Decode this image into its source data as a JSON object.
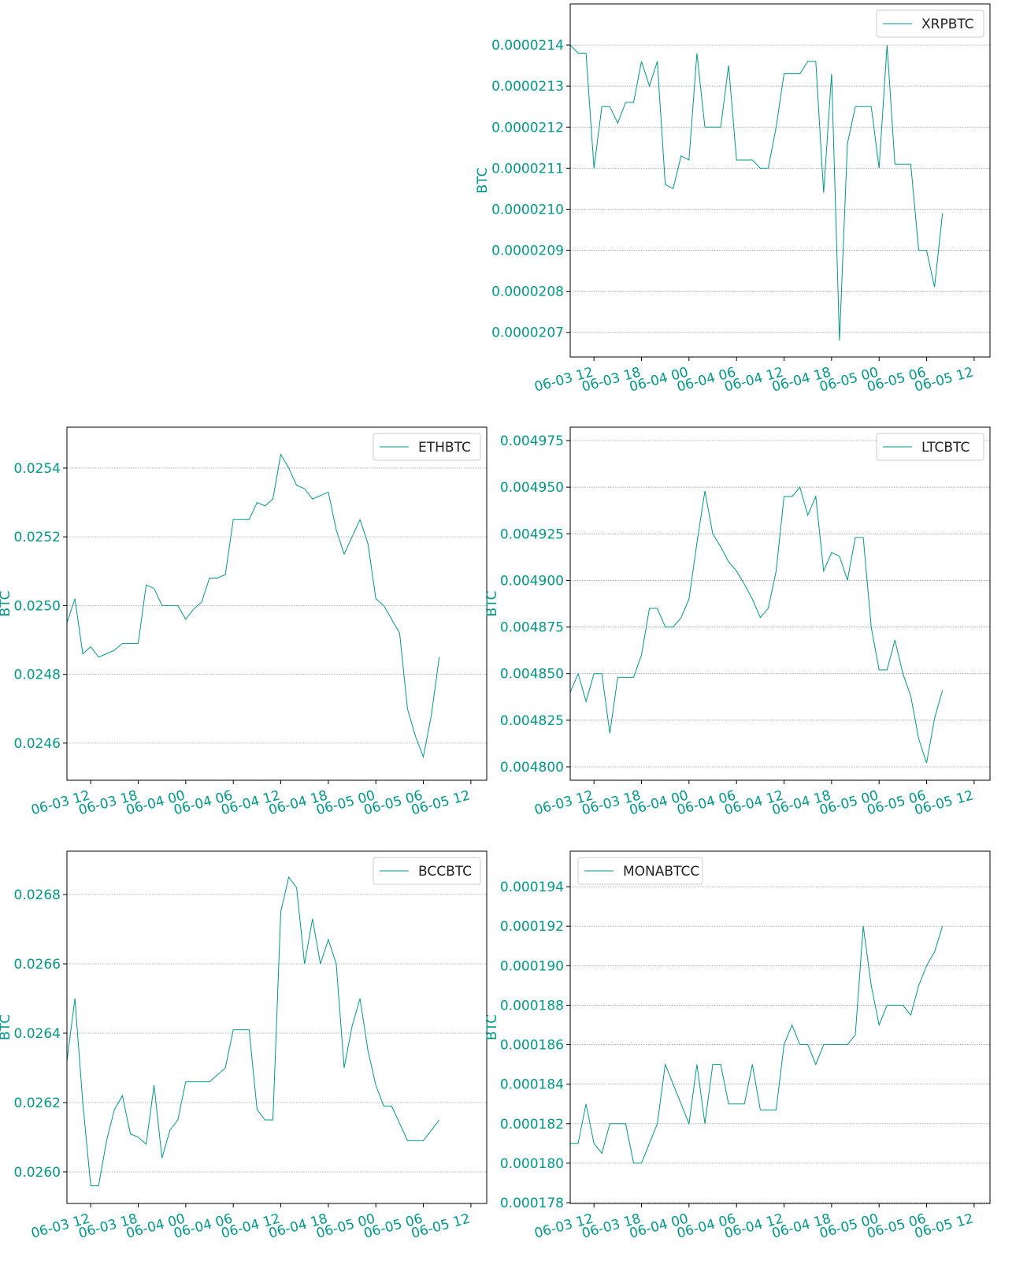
{
  "chart_data": [
    {
      "type": "line",
      "ylabel": "BTC",
      "grid": true,
      "legend": "upper right",
      "x": [
        "06-03 09",
        "06-03 10",
        "06-03 11",
        "06-03 12",
        "06-03 13",
        "06-03 14",
        "06-03 15",
        "06-03 16",
        "06-03 17",
        "06-03 18",
        "06-03 19",
        "06-03 20",
        "06-03 21",
        "06-03 22",
        "06-03 23",
        "06-04 00",
        "06-04 01",
        "06-04 02",
        "06-04 03",
        "06-04 04",
        "06-04 05",
        "06-04 06",
        "06-04 07",
        "06-04 08",
        "06-04 09",
        "06-04 10",
        "06-04 11",
        "06-04 12",
        "06-04 13",
        "06-04 14",
        "06-04 15",
        "06-04 16",
        "06-04 17",
        "06-04 18",
        "06-04 19",
        "06-04 20",
        "06-04 21",
        "06-04 22",
        "06-04 23",
        "06-05 00",
        "06-05 01",
        "06-05 02",
        "06-05 03",
        "06-05 04",
        "06-05 05",
        "06-05 06",
        "06-05 07",
        "06-05 08"
      ],
      "xlim": [
        "06-03 09",
        "06-05 14"
      ],
      "xticks": [
        "06-03 12",
        "06-03 18",
        "06-04 00",
        "06-04 06",
        "06-04 12",
        "06-04 18",
        "06-05 00",
        "06-05 06",
        "06-05 12"
      ],
      "ylim": [
        2.064e-05,
        2.15e-05
      ],
      "yticks": [
        {
          "value": 2.07e-05,
          "label": "0.0000207"
        },
        {
          "value": 2.08e-05,
          "label": "0.0000208"
        },
        {
          "value": 2.09e-05,
          "label": "0.0000209"
        },
        {
          "value": 2.1e-05,
          "label": "0.0000210"
        },
        {
          "value": 2.11e-05,
          "label": "0.0000211"
        },
        {
          "value": 2.12e-05,
          "label": "0.0000212"
        },
        {
          "value": 2.13e-05,
          "label": "0.0000213"
        },
        {
          "value": 2.14e-05,
          "label": "0.0000214"
        }
      ],
      "series": [
        {
          "name": "XRPBTC",
          "color": "#00998a",
          "values": [
            2.14e-05,
            2.138e-05,
            2.138e-05,
            2.11e-05,
            2.125e-05,
            2.125e-05,
            2.121e-05,
            2.126e-05,
            2.126e-05,
            2.136e-05,
            2.13e-05,
            2.136e-05,
            2.106e-05,
            2.105e-05,
            2.113e-05,
            2.112e-05,
            2.138e-05,
            2.12e-05,
            2.12e-05,
            2.12e-05,
            2.135e-05,
            2.112e-05,
            2.112e-05,
            2.112e-05,
            2.11e-05,
            2.11e-05,
            2.12e-05,
            2.133e-05,
            2.133e-05,
            2.133e-05,
            2.136e-05,
            2.136e-05,
            2.104e-05,
            2.133e-05,
            2.068e-05,
            2.116e-05,
            2.125e-05,
            2.125e-05,
            2.125e-05,
            2.11e-05,
            2.14e-05,
            2.111e-05,
            2.111e-05,
            2.111e-05,
            2.09e-05,
            2.09e-05,
            2.081e-05,
            2.099e-05
          ]
        }
      ]
    },
    {
      "type": "line",
      "ylabel": "BTC",
      "grid": true,
      "legend": "upper right",
      "x": [
        "06-03 09",
        "06-03 10",
        "06-03 11",
        "06-03 12",
        "06-03 13",
        "06-03 14",
        "06-03 15",
        "06-03 16",
        "06-03 17",
        "06-03 18",
        "06-03 19",
        "06-03 20",
        "06-03 21",
        "06-03 22",
        "06-03 23",
        "06-04 00",
        "06-04 01",
        "06-04 02",
        "06-04 03",
        "06-04 04",
        "06-04 05",
        "06-04 06",
        "06-04 07",
        "06-04 08",
        "06-04 09",
        "06-04 10",
        "06-04 11",
        "06-04 12",
        "06-04 13",
        "06-04 14",
        "06-04 15",
        "06-04 16",
        "06-04 17",
        "06-04 18",
        "06-04 19",
        "06-04 20",
        "06-04 21",
        "06-04 22",
        "06-04 23",
        "06-05 00",
        "06-05 01",
        "06-05 02",
        "06-05 03",
        "06-05 04",
        "06-05 05",
        "06-05 06",
        "06-05 07",
        "06-05 08"
      ],
      "xlim": [
        "06-03 09",
        "06-05 14"
      ],
      "xticks": [
        "06-03 12",
        "06-03 18",
        "06-04 00",
        "06-04 06",
        "06-04 12",
        "06-04 18",
        "06-05 00",
        "06-05 06",
        "06-05 12"
      ],
      "ylim": [
        0.024492,
        0.025519
      ],
      "yticks": [
        {
          "value": 0.0246,
          "label": "0.0246"
        },
        {
          "value": 0.0248,
          "label": "0.0248"
        },
        {
          "value": 0.025,
          "label": "0.0250"
        },
        {
          "value": 0.0252,
          "label": "0.0252"
        },
        {
          "value": 0.0254,
          "label": "0.0254"
        }
      ],
      "series": [
        {
          "name": "ETHBTC",
          "color": "#00998a",
          "values": [
            0.02495,
            0.02502,
            0.02486,
            0.02488,
            0.02485,
            0.02486,
            0.02487,
            0.02489,
            0.02489,
            0.02489,
            0.02506,
            0.02505,
            0.025,
            0.025,
            0.025,
            0.02496,
            0.02499,
            0.02501,
            0.02508,
            0.02508,
            0.02509,
            0.02525,
            0.02525,
            0.02525,
            0.0253,
            0.02529,
            0.02531,
            0.02544,
            0.0254,
            0.02535,
            0.02534,
            0.02531,
            0.02532,
            0.02533,
            0.02522,
            0.02515,
            0.0252,
            0.02525,
            0.02518,
            0.02502,
            0.025,
            0.02496,
            0.02492,
            0.0247,
            0.02462,
            0.02456,
            0.02468,
            0.02485
          ]
        }
      ]
    },
    {
      "type": "line",
      "ylabel": "BTC",
      "grid": true,
      "legend": "upper right",
      "x": [
        "06-03 09",
        "06-03 10",
        "06-03 11",
        "06-03 12",
        "06-03 13",
        "06-03 14",
        "06-03 15",
        "06-03 16",
        "06-03 17",
        "06-03 18",
        "06-03 19",
        "06-03 20",
        "06-03 21",
        "06-03 22",
        "06-03 23",
        "06-04 00",
        "06-04 01",
        "06-04 02",
        "06-04 03",
        "06-04 04",
        "06-04 05",
        "06-04 06",
        "06-04 07",
        "06-04 08",
        "06-04 09",
        "06-04 10",
        "06-04 11",
        "06-04 12",
        "06-04 13",
        "06-04 14",
        "06-04 15",
        "06-04 16",
        "06-04 17",
        "06-04 18",
        "06-04 19",
        "06-04 20",
        "06-04 21",
        "06-04 22",
        "06-04 23",
        "06-05 00",
        "06-05 01",
        "06-05 02",
        "06-05 03",
        "06-05 04",
        "06-05 05",
        "06-05 06",
        "06-05 07",
        "06-05 08"
      ],
      "xlim": [
        "06-03 09",
        "06-05 14"
      ],
      "xticks": [
        "06-03 12",
        "06-03 18",
        "06-04 00",
        "06-04 06",
        "06-04 12",
        "06-04 18",
        "06-05 00",
        "06-05 06",
        "06-05 12"
      ],
      "ylim": [
        0.0047928,
        0.0049822
      ],
      "yticks": [
        {
          "value": 0.0048,
          "label": "0.004800"
        },
        {
          "value": 0.004825,
          "label": "0.004825"
        },
        {
          "value": 0.00485,
          "label": "0.004850"
        },
        {
          "value": 0.004875,
          "label": "0.004875"
        },
        {
          "value": 0.0049,
          "label": "0.004900"
        },
        {
          "value": 0.004925,
          "label": "0.004925"
        },
        {
          "value": 0.00495,
          "label": "0.004950"
        },
        {
          "value": 0.004975,
          "label": "0.004975"
        }
      ],
      "series": [
        {
          "name": "LTCBTC",
          "color": "#00998a",
          "values": [
            0.00484,
            0.00485,
            0.004835,
            0.00485,
            0.00485,
            0.004818,
            0.004848,
            0.004848,
            0.004848,
            0.00486,
            0.004885,
            0.004885,
            0.004875,
            0.004875,
            0.00488,
            0.00489,
            0.00492,
            0.004948,
            0.004925,
            0.004918,
            0.00491,
            0.004905,
            0.004898,
            0.00489,
            0.00488,
            0.004885,
            0.004905,
            0.004945,
            0.004945,
            0.00495,
            0.004935,
            0.004945,
            0.004905,
            0.004915,
            0.004913,
            0.0049,
            0.004923,
            0.004923,
            0.004875,
            0.004852,
            0.004852,
            0.004868,
            0.00485,
            0.004838,
            0.004815,
            0.004802,
            0.004826,
            0.004841
          ]
        }
      ]
    },
    {
      "type": "line",
      "ylabel": "BTC",
      "grid": true,
      "legend": "upper right",
      "x": [
        "06-03 09",
        "06-03 10",
        "06-03 11",
        "06-03 12",
        "06-03 13",
        "06-03 14",
        "06-03 15",
        "06-03 16",
        "06-03 17",
        "06-03 18",
        "06-03 19",
        "06-03 20",
        "06-03 21",
        "06-03 22",
        "06-03 23",
        "06-04 00",
        "06-04 01",
        "06-04 02",
        "06-04 03",
        "06-04 04",
        "06-04 05",
        "06-04 06",
        "06-04 07",
        "06-04 08",
        "06-04 09",
        "06-04 10",
        "06-04 11",
        "06-04 12",
        "06-04 13",
        "06-04 14",
        "06-04 15",
        "06-04 16",
        "06-04 17",
        "06-04 18",
        "06-04 19",
        "06-04 20",
        "06-04 21",
        "06-04 22",
        "06-04 23",
        "06-05 00",
        "06-05 01",
        "06-05 02",
        "06-05 03",
        "06-05 04",
        "06-05 05",
        "06-05 06",
        "06-05 07",
        "06-05 08"
      ],
      "xlim": [
        "06-03 09",
        "06-05 14"
      ],
      "xticks": [
        "06-03 12",
        "06-03 18",
        "06-04 00",
        "06-04 06",
        "06-04 12",
        "06-04 18",
        "06-05 00",
        "06-05 06",
        "06-05 12"
      ],
      "ylim": [
        0.025909,
        0.026925
      ],
      "yticks": [
        {
          "value": 0.026,
          "label": "0.0260"
        },
        {
          "value": 0.0262,
          "label": "0.0262"
        },
        {
          "value": 0.0264,
          "label": "0.0264"
        },
        {
          "value": 0.0266,
          "label": "0.0266"
        },
        {
          "value": 0.0268,
          "label": "0.0268"
        }
      ],
      "series": [
        {
          "name": "BCCBTC",
          "color": "#00998a",
          "values": [
            0.02632,
            0.0265,
            0.0262,
            0.02596,
            0.02596,
            0.02609,
            0.02618,
            0.02622,
            0.02611,
            0.0261,
            0.02608,
            0.02625,
            0.02604,
            0.02612,
            0.02615,
            0.02626,
            0.02626,
            0.02626,
            0.02626,
            0.02628,
            0.0263,
            0.02641,
            0.02641,
            0.02641,
            0.02618,
            0.02615,
            0.02615,
            0.02675,
            0.02685,
            0.02682,
            0.0266,
            0.02673,
            0.0266,
            0.02667,
            0.0266,
            0.0263,
            0.02642,
            0.0265,
            0.02635,
            0.02625,
            0.02619,
            0.02619,
            0.02614,
            0.02609,
            0.02609,
            0.02609,
            0.02612,
            0.02615
          ]
        }
      ]
    },
    {
      "type": "line",
      "ylabel": "BTC",
      "grid": true,
      "legend": "upper left",
      "x": [
        "06-03 09",
        "06-03 10",
        "06-03 11",
        "06-03 12",
        "06-03 13",
        "06-03 14",
        "06-03 15",
        "06-03 16",
        "06-03 17",
        "06-03 18",
        "06-03 19",
        "06-03 20",
        "06-03 21",
        "06-03 22",
        "06-03 23",
        "06-04 00",
        "06-04 01",
        "06-04 02",
        "06-04 03",
        "06-04 04",
        "06-04 05",
        "06-04 06",
        "06-04 07",
        "06-04 08",
        "06-04 09",
        "06-04 10",
        "06-04 11",
        "06-04 12",
        "06-04 13",
        "06-04 14",
        "06-04 15",
        "06-04 16",
        "06-04 17",
        "06-04 18",
        "06-04 19",
        "06-04 20",
        "06-04 21",
        "06-04 22",
        "06-04 23",
        "06-05 00",
        "06-05 01",
        "06-05 02",
        "06-05 03",
        "06-05 04",
        "06-05 05",
        "06-05 06",
        "06-05 07",
        "06-05 08"
      ],
      "xlim": [
        "06-03 09",
        "06-05 14"
      ],
      "xticks": [
        "06-03 12",
        "06-03 18",
        "06-04 00",
        "06-04 06",
        "06-04 12",
        "06-04 18",
        "06-05 00",
        "06-05 06",
        "06-05 12"
      ],
      "ylim": [
        0.00017796,
        0.0001958
      ],
      "yticks": [
        {
          "value": 0.000178,
          "label": "0.000178"
        },
        {
          "value": 0.00018,
          "label": "0.000180"
        },
        {
          "value": 0.000182,
          "label": "0.000182"
        },
        {
          "value": 0.000184,
          "label": "0.000184"
        },
        {
          "value": 0.000186,
          "label": "0.000186"
        },
        {
          "value": 0.000188,
          "label": "0.000188"
        },
        {
          "value": 0.00019,
          "label": "0.000190"
        },
        {
          "value": 0.000192,
          "label": "0.000192"
        },
        {
          "value": 0.000194,
          "label": "0.000194"
        }
      ],
      "series": [
        {
          "name": "MONABTCC",
          "color": "#00998a",
          "values": [
            0.000181,
            0.000181,
            0.000183,
            0.000181,
            0.0001805,
            0.000182,
            0.000182,
            0.000182,
            0.00018,
            0.00018,
            0.000181,
            0.000182,
            0.000185,
            0.000184,
            0.000183,
            0.000182,
            0.000185,
            0.000182,
            0.000185,
            0.000185,
            0.000183,
            0.000183,
            0.000183,
            0.000185,
            0.0001827,
            0.0001827,
            0.0001827,
            0.000186,
            0.000187,
            0.000186,
            0.000186,
            0.000185,
            0.000186,
            0.000186,
            0.000186,
            0.000186,
            0.0001865,
            0.000192,
            0.000189,
            0.000187,
            0.000188,
            0.000188,
            0.000188,
            0.0001875,
            0.000189,
            0.00019,
            0.0001907,
            0.000192
          ]
        }
      ]
    }
  ]
}
